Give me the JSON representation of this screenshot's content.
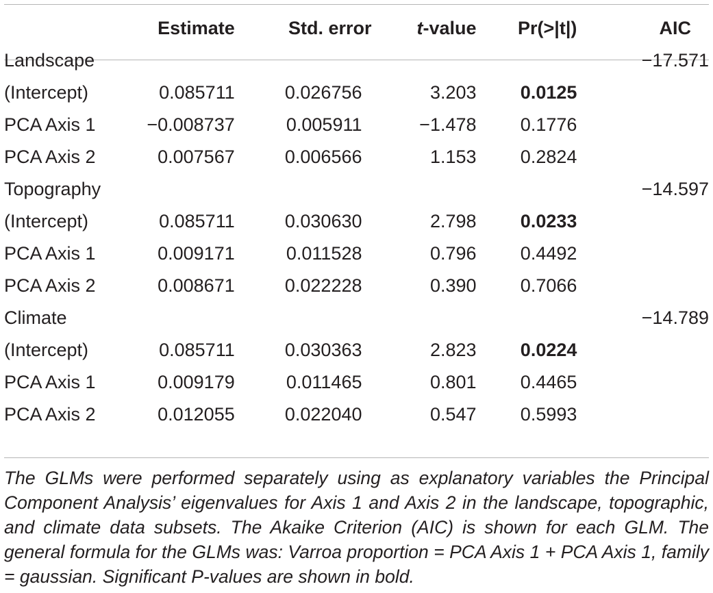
{
  "table": {
    "header": {
      "col0": "",
      "estimate": "Estimate",
      "std_error": "Std. error",
      "t_value_italic": "t",
      "t_value_rest": "-value",
      "p_value": "Pr(>|t|)",
      "aic": "AIC"
    },
    "groups": [
      {
        "name": "Landscape",
        "aic": "−17.571",
        "rows": [
          {
            "term": "(Intercept)",
            "estimate": "0.085711",
            "std_error": "0.026756",
            "t_value": "3.203",
            "p_value": "0.0125",
            "significant": true
          },
          {
            "term": "PCA Axis 1",
            "estimate": "−0.008737",
            "std_error": "0.005911",
            "t_value": "−1.478",
            "p_value": "0.1776",
            "significant": false
          },
          {
            "term": "PCA Axis 2",
            "estimate": "0.007567",
            "std_error": "0.006566",
            "t_value": "1.153",
            "p_value": "0.2824",
            "significant": false
          }
        ]
      },
      {
        "name": "Topography",
        "aic": "−14.597",
        "rows": [
          {
            "term": "(Intercept)",
            "estimate": "0.085711",
            "std_error": "0.030630",
            "t_value": "2.798",
            "p_value": "0.0233",
            "significant": true
          },
          {
            "term": "PCA Axis 1",
            "estimate": "0.009171",
            "std_error": "0.011528",
            "t_value": "0.796",
            "p_value": "0.4492",
            "significant": false
          },
          {
            "term": "PCA Axis 2",
            "estimate": "0.008671",
            "std_error": "0.022228",
            "t_value": "0.390",
            "p_value": "0.7066",
            "significant": false
          }
        ]
      },
      {
        "name": "Climate",
        "aic": "−14.789",
        "rows": [
          {
            "term": "(Intercept)",
            "estimate": "0.085711",
            "std_error": "0.030363",
            "t_value": "2.823",
            "p_value": "0.0224",
            "significant": true
          },
          {
            "term": "PCA Axis 1",
            "estimate": "0.009179",
            "std_error": "0.011465",
            "t_value": "0.801",
            "p_value": "0.4465",
            "significant": false
          },
          {
            "term": "PCA Axis 2",
            "estimate": "0.012055",
            "std_error": "0.022040",
            "t_value": "0.547",
            "p_value": "0.5993",
            "significant": false
          }
        ]
      }
    ]
  },
  "caption": "The GLMs were performed separately using as explanatory variables the Principal Component Analysis’ eigenvalues for Axis 1 and Axis 2 in the landscape, topographic, and climate data subsets. The Akaike Criterion (AIC) is shown for each GLM. The general formula for the GLMs was: Varroa proportion = PCA Axis 1 + PCA Axis 1, family = gaussian. Significant P-values are shown in bold.",
  "colors": {
    "rule": "#b5b5b5",
    "text": "#231f20"
  }
}
